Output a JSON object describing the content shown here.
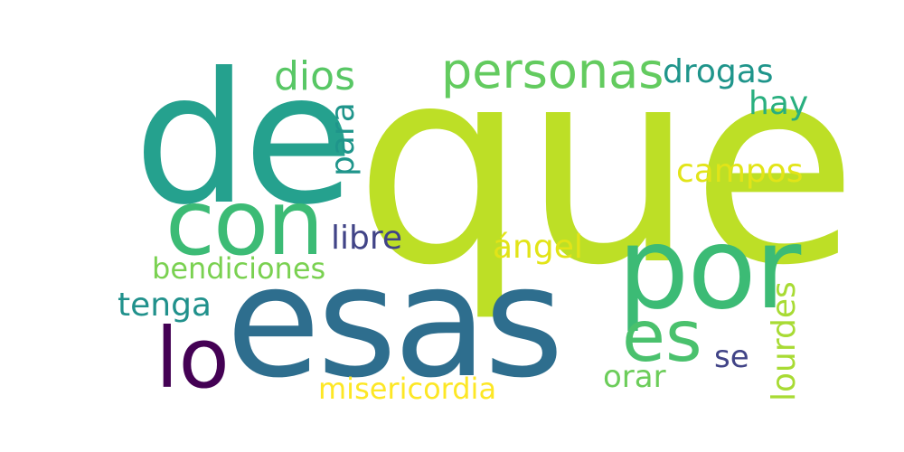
{
  "words": {
    "que": {
      "text": "que",
      "color": "#bddf26"
    },
    "de": {
      "text": "de",
      "color": "#25a18e"
    },
    "esas": {
      "text": "esas",
      "color": "#2e6e8e"
    },
    "por": {
      "text": "por",
      "color": "#3cbb75"
    },
    "con": {
      "text": "con",
      "color": "#3cbb75"
    },
    "lo": {
      "text": "lo",
      "color": "#440154"
    },
    "personas": {
      "text": "personas",
      "color": "#63cb5f"
    },
    "dios": {
      "text": "dios",
      "color": "#58c765"
    },
    "drogas": {
      "text": "drogas",
      "color": "#1f958b"
    },
    "hay": {
      "text": "hay",
      "color": "#29af7f"
    },
    "para": {
      "text": "para",
      "color": "#1f958b"
    },
    "campos": {
      "text": "campos",
      "color": "#e2e418"
    },
    "libre": {
      "text": "libre",
      "color": "#414487"
    },
    "bendiciones": {
      "text": "bendiciones",
      "color": "#7ad151"
    },
    "angel": {
      "text": "ángel",
      "color": "#e2e418"
    },
    "tenga": {
      "text": "tenga",
      "color": "#21918c"
    },
    "es": {
      "text": "es",
      "color": "#4ac16d"
    },
    "lourdes": {
      "text": "lourdes",
      "color": "#a8db34"
    },
    "se": {
      "text": "se",
      "color": "#414487"
    },
    "orar": {
      "text": "orar",
      "color": "#6ccd5a"
    },
    "misericordia": {
      "text": "misericordia",
      "color": "#fde725"
    }
  }
}
